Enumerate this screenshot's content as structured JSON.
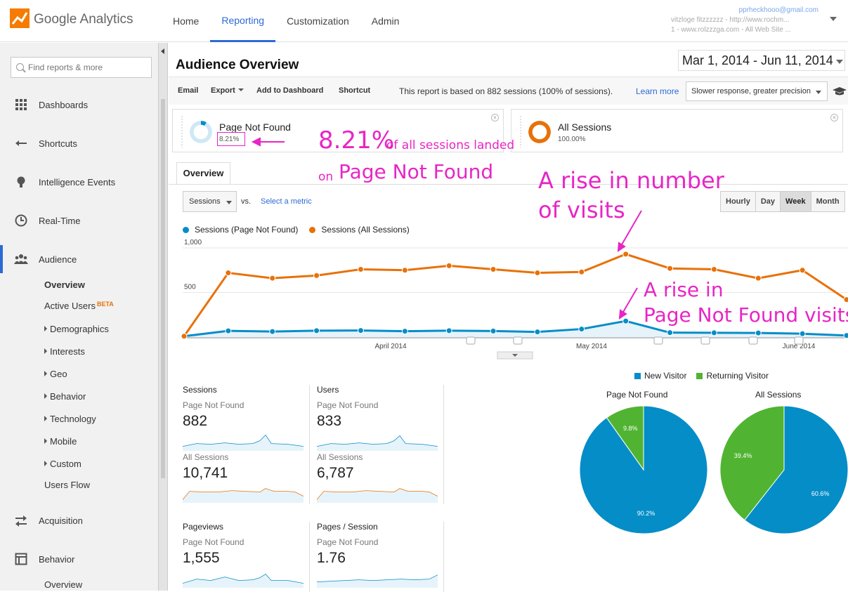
{
  "app": {
    "brand_google": "Google",
    "brand_analytics": "Analytics",
    "nav": [
      "Home",
      "Reporting",
      "Customization",
      "Admin"
    ],
    "active_nav": "Reporting",
    "account_email": "pprheckhooo@gmail.com",
    "account_line1": "vitzloge fitzzzzzz - http://www.rochm...",
    "account_line2": "1 - www.rolzzzga.com - All Web Site ..."
  },
  "sidebar": {
    "search_placeholder": "Find reports & more",
    "main_items": [
      {
        "label": "Dashboards",
        "icon": "grid-icon"
      },
      {
        "label": "Shortcuts",
        "icon": "shortcut-arrow-icon"
      },
      {
        "label": "Intelligence Events",
        "icon": "lightbulb-icon"
      },
      {
        "label": "Real-Time",
        "icon": "clock-icon"
      },
      {
        "label": "Audience",
        "icon": "people-icon"
      },
      {
        "label": "Acquisition",
        "icon": "swap-arrows-icon"
      },
      {
        "label": "Behavior",
        "icon": "layout-icon"
      }
    ],
    "audience_sub": [
      "Overview",
      "Active Users",
      "Demographics",
      "Interests",
      "Geo",
      "Behavior",
      "Technology",
      "Mobile",
      "Custom",
      "Users Flow"
    ],
    "beta_label": "BETA",
    "behavior_sub": [
      "Overview"
    ]
  },
  "page": {
    "title": "Audience Overview",
    "date_range": "Mar 1, 2014 - Jun 11, 2014",
    "toolbar": {
      "email": "Email",
      "export": "Export",
      "add_dashboard": "Add to Dashboard",
      "shortcut": "Shortcut",
      "report_note": "This report is based on 882 sessions (100% of sessions).",
      "learn_more": "Learn more",
      "precision": "Slower response, greater precision"
    },
    "segments": [
      {
        "name": "Page Not Found",
        "pct": "8.21%",
        "color": "#058dc7"
      },
      {
        "name": "All Sessions",
        "pct": "100.00%",
        "color": "#e8710a"
      }
    ],
    "tab": "Overview",
    "metric_select": "Sessions",
    "vs": "vs.",
    "select_metric": "Select a metric",
    "granularity": [
      "Hourly",
      "Day",
      "Week",
      "Month"
    ],
    "active_granularity": "Week",
    "legend": [
      "Sessions (Page Not Found)",
      "Sessions (All Sessions)"
    ]
  },
  "chart_data": {
    "type": "line",
    "series": [
      {
        "name": "Sessions (Page Not Found)",
        "color": "#058dc7",
        "values": [
          10,
          70,
          62,
          72,
          74,
          66,
          72,
          68,
          58,
          90,
          180,
          50,
          48,
          46,
          38,
          18
        ]
      },
      {
        "name": "Sessions (All Sessions)",
        "color": "#e8710a",
        "values": [
          10,
          720,
          660,
          690,
          760,
          750,
          800,
          760,
          720,
          730,
          930,
          770,
          760,
          660,
          750,
          420
        ]
      },
      {
        "name": "",
        "color": "#058dc7",
        "values": [
          0,
          0,
          0,
          0,
          0,
          0,
          0,
          0,
          0,
          0,
          0,
          0,
          0,
          0,
          0,
          0
        ]
      }
    ],
    "y_ticks": [
      "1,000",
      "500"
    ],
    "ylim": [
      0,
      1000
    ],
    "x_labels": [
      "April 2014",
      "May 2014",
      "June 2014"
    ],
    "grid": true
  },
  "scorecards": [
    {
      "title": "Sessions",
      "seg1": "Page Not Found",
      "val1": "882",
      "seg2": "All Sessions",
      "val2": "10,741"
    },
    {
      "title": "Users",
      "seg1": "Page Not Found",
      "val1": "833",
      "seg2": "All Sessions",
      "val2": "6,787"
    },
    {
      "title": "Pageviews",
      "seg1": "Page Not Found",
      "val1": "1,555"
    },
    {
      "title": "Pages / Session",
      "seg1": "Page Not Found",
      "val1": "1.76"
    }
  ],
  "pies": {
    "legend": [
      {
        "label": "New Visitor",
        "color": "#058dc7"
      },
      {
        "label": "Returning Visitor",
        "color": "#50b432"
      }
    ],
    "charts": [
      {
        "title": "Page Not Found",
        "new_pct": 90.2,
        "returning_pct": 9.8,
        "new_label": "90.2%",
        "returning_label": "9.8%"
      },
      {
        "title": "All Sessions",
        "new_pct": 60.6,
        "returning_pct": 39.4,
        "new_label": "60.6%",
        "returning_label": "39.4%"
      }
    ]
  },
  "annotations": {
    "pct_big": "8.21%",
    "pct_tail": "of all sessions landed",
    "on": "on",
    "page_not_found": "Page Not Found",
    "rise1_l1": "A rise in number",
    "rise1_l2": "of visits",
    "rise2_l1": "A rise in",
    "rise2_l2": "Page Not Found visits",
    "color": "#e825c5"
  }
}
